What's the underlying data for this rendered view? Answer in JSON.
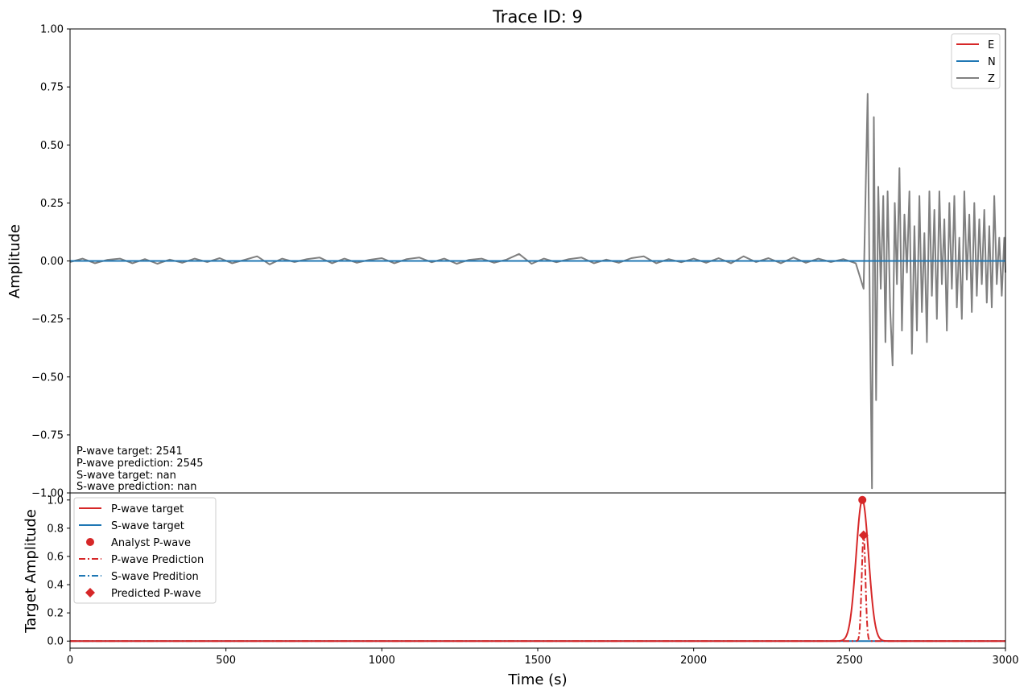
{
  "chart_data": [
    {
      "type": "line",
      "title": "Trace ID: 9",
      "ylabel": "Amplitude",
      "xlim": [
        0,
        3000
      ],
      "ylim": [
        -1,
        1
      ],
      "yticks": [
        1.0,
        0.75,
        0.5,
        0.25,
        0.0,
        -0.25,
        -0.5,
        -0.75,
        -1.0
      ],
      "ytick_labels": [
        "1.00",
        "0.75",
        "0.50",
        "0.25",
        "0.00",
        "−0.25",
        "−0.50",
        "−0.75",
        "−1.00"
      ],
      "legend_position": "top-right",
      "series": [
        {
          "name": "E",
          "color": "#d62728",
          "style": "solid"
        },
        {
          "name": "N",
          "color": "#1f77b4",
          "style": "solid"
        },
        {
          "name": "Z",
          "color": "#808080",
          "style": "solid",
          "x": [
            0,
            40,
            80,
            120,
            160,
            200,
            240,
            280,
            320,
            360,
            400,
            440,
            480,
            520,
            560,
            600,
            640,
            680,
            720,
            760,
            800,
            840,
            880,
            920,
            960,
            1000,
            1040,
            1080,
            1120,
            1160,
            1200,
            1240,
            1280,
            1320,
            1360,
            1400,
            1440,
            1480,
            1520,
            1560,
            1600,
            1640,
            1680,
            1720,
            1760,
            1800,
            1840,
            1880,
            1920,
            1960,
            2000,
            2040,
            2080,
            2120,
            2160,
            2200,
            2240,
            2280,
            2320,
            2360,
            2400,
            2440,
            2480,
            2520,
            2545,
            2558,
            2565,
            2572,
            2578,
            2585,
            2592,
            2600,
            2608,
            2615,
            2622,
            2630,
            2638,
            2645,
            2652,
            2660,
            2668,
            2676,
            2684,
            2692,
            2700,
            2708,
            2716,
            2724,
            2732,
            2740,
            2748,
            2756,
            2764,
            2772,
            2780,
            2788,
            2796,
            2804,
            2812,
            2820,
            2828,
            2836,
            2844,
            2852,
            2860,
            2868,
            2876,
            2884,
            2892,
            2900,
            2908,
            2916,
            2924,
            2932,
            2940,
            2948,
            2956,
            2964,
            2972,
            2980,
            2988,
            2996,
            3000
          ],
          "y": [
            -0.005,
            0.01,
            -0.01,
            0.005,
            0.01,
            -0.01,
            0.008,
            -0.012,
            0.006,
            -0.008,
            0.01,
            -0.005,
            0.012,
            -0.01,
            0.005,
            0.02,
            -0.015,
            0.01,
            -0.005,
            0.008,
            0.015,
            -0.01,
            0.01,
            -0.008,
            0.005,
            0.012,
            -0.01,
            0.008,
            0.015,
            -0.006,
            0.01,
            -0.012,
            0.005,
            0.01,
            -0.008,
            0.006,
            0.03,
            -0.012,
            0.01,
            -0.006,
            0.008,
            0.015,
            -0.01,
            0.006,
            -0.008,
            0.012,
            0.02,
            -0.01,
            0.008,
            -0.006,
            0.01,
            -0.008,
            0.012,
            -0.01,
            0.02,
            -0.005,
            0.012,
            -0.01,
            0.015,
            -0.008,
            0.01,
            -0.005,
            0.008,
            -0.01,
            -0.12,
            0.72,
            -0.2,
            -0.98,
            0.62,
            -0.6,
            0.32,
            -0.12,
            0.28,
            -0.35,
            0.3,
            -0.2,
            -0.45,
            0.25,
            -0.1,
            0.4,
            -0.3,
            0.2,
            -0.05,
            0.3,
            -0.4,
            0.15,
            -0.3,
            0.28,
            -0.22,
            0.12,
            -0.35,
            0.3,
            -0.15,
            0.22,
            -0.25,
            0.3,
            -0.1,
            0.18,
            -0.3,
            0.25,
            -0.12,
            0.28,
            -0.2,
            0.1,
            -0.25,
            0.3,
            -0.08,
            0.2,
            -0.22,
            0.25,
            -0.15,
            0.18,
            -0.1,
            0.22,
            -0.18,
            0.15,
            -0.2,
            0.28,
            -0.1,
            0.1,
            -0.15,
            0.1,
            -0.05
          ]
        }
      ],
      "annotations": [
        "P-wave target: 2541",
        "P-wave prediction: 2545",
        "S-wave target: nan",
        "S-wave prediction: nan"
      ]
    },
    {
      "type": "line",
      "xlabel": "Time (s)",
      "ylabel": "Target Amplitude",
      "xlim": [
        0,
        3000
      ],
      "ylim": [
        -0.05,
        1.05
      ],
      "xticks": [
        0,
        500,
        1000,
        1500,
        2000,
        2500,
        3000
      ],
      "xtick_labels": [
        "0",
        "500",
        "1000",
        "1500",
        "2000",
        "2500",
        "3000"
      ],
      "yticks": [
        0.0,
        0.2,
        0.4,
        0.6,
        0.8,
        1.0
      ],
      "ytick_labels": [
        "0.0",
        "0.2",
        "0.4",
        "0.6",
        "0.8",
        "1.0"
      ],
      "legend_position": "top-left",
      "series": [
        {
          "name": "P-wave target",
          "color": "#d62728",
          "style": "solid",
          "peak_x": 2541,
          "peak_y": 1.0,
          "width": 20
        },
        {
          "name": "S-wave target",
          "color": "#1f77b4",
          "style": "solid",
          "constant_y": 0.0
        },
        {
          "name": "Analyst P-wave",
          "color": "#d62728",
          "marker": "circle",
          "x": 2541,
          "y": 1.0
        },
        {
          "name": "P-wave Prediction",
          "color": "#d62728",
          "style": "dashdot",
          "peak_x": 2545,
          "peak_y": 0.75,
          "width": 6
        },
        {
          "name": "S-wave Predition",
          "color": "#1f77b4",
          "style": "dashdot",
          "constant_y": 0.0
        },
        {
          "name": "Predicted P-wave",
          "color": "#d62728",
          "marker": "diamond",
          "x": 2545,
          "y": 0.75
        }
      ]
    }
  ]
}
